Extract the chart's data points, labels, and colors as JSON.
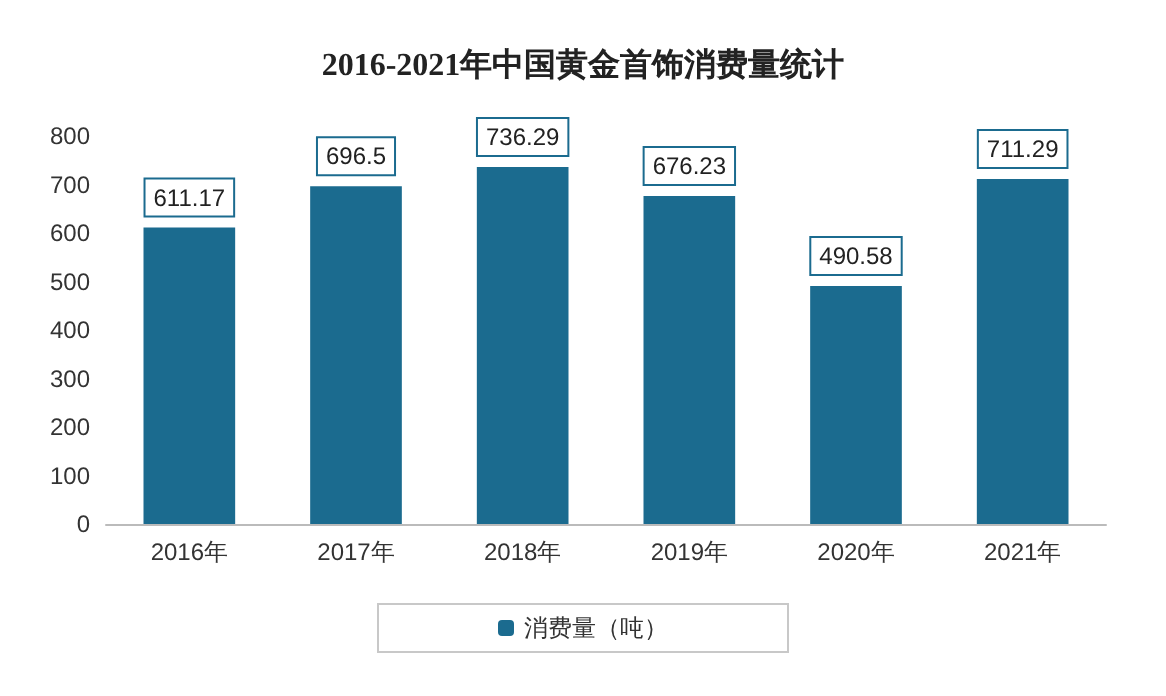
{
  "chart_data": {
    "type": "bar",
    "title": "2016-2021年中国黄金首饰消费量统计",
    "categories": [
      "2016年",
      "2017年",
      "2018年",
      "2019年",
      "2020年",
      "2021年"
    ],
    "series": [
      {
        "name": "消费量（吨）",
        "color": "#1b6b8f",
        "values": [
          611.17,
          696.5,
          736.29,
          676.23,
          490.58,
          711.29
        ]
      }
    ],
    "ylim": [
      0,
      800
    ],
    "yticks": [
      0,
      100,
      200,
      300,
      400,
      500,
      600,
      700,
      800
    ],
    "grid": false,
    "legend": "bottom",
    "data_labels": true
  }
}
